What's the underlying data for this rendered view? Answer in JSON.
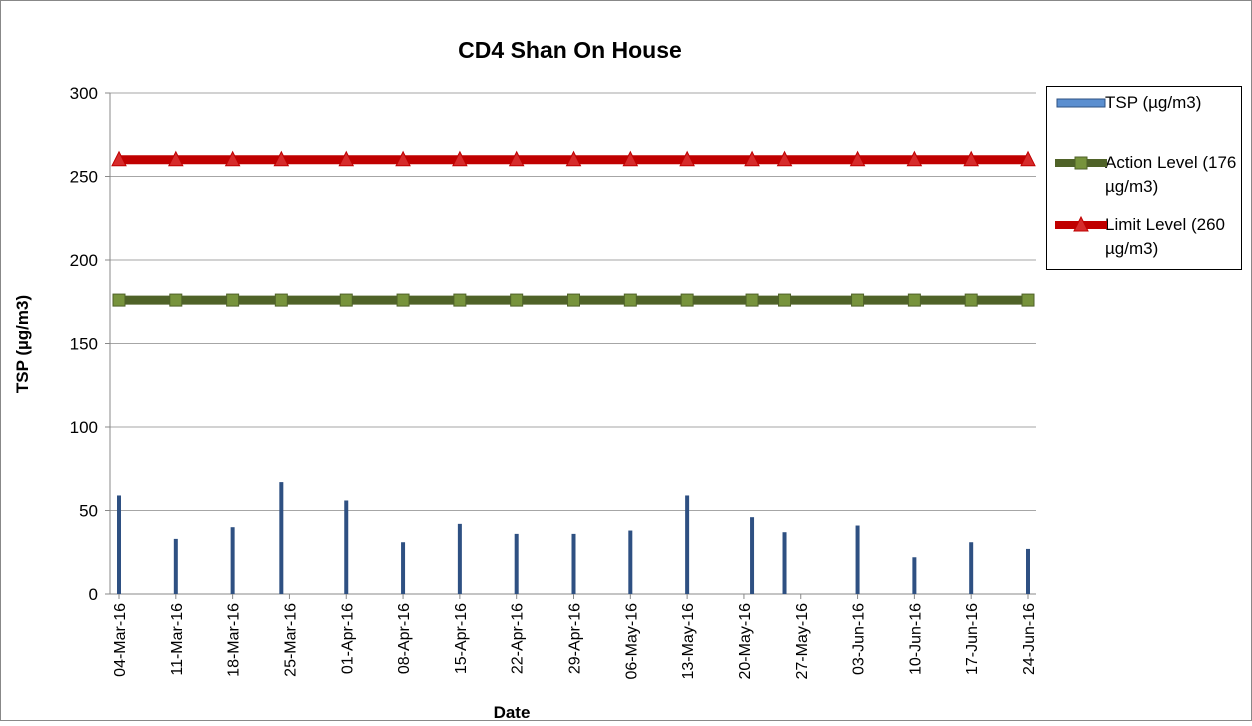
{
  "chart_data": {
    "type": "bar_line",
    "title": "CD4 Shan On House",
    "ylabel": "TSP (µg/m3)",
    "xlabel": "Date",
    "x": [
      "2016-03-04",
      "2016-03-11",
      "2016-03-18",
      "2016-03-24",
      "2016-04-01",
      "2016-04-08",
      "2016-04-15",
      "2016-04-22",
      "2016-04-29",
      "2016-05-06",
      "2016-05-13",
      "2016-05-21",
      "2016-05-25",
      "2016-06-03",
      "2016-06-10",
      "2016-06-17",
      "2016-06-24"
    ],
    "series": [
      {
        "name": "TSP (µg/m3)",
        "type": "bar",
        "color": "#2e5082",
        "values": [
          59,
          33,
          40,
          67,
          56,
          31,
          42,
          36,
          36,
          38,
          59,
          46,
          37,
          41,
          22,
          31,
          27
        ]
      },
      {
        "name": "Action Level (176 µg/m3)",
        "type": "line",
        "color": "#4f6228",
        "marker": "square",
        "marker_color": "#77933c",
        "values": [
          176,
          176,
          176,
          176,
          176,
          176,
          176,
          176,
          176,
          176,
          176,
          176,
          176,
          176,
          176,
          176,
          176
        ]
      },
      {
        "name": "Limit Level (260 µg/m3)",
        "type": "line",
        "color": "#c00000",
        "marker": "triangle",
        "marker_color": "#d62b2b",
        "values": [
          260,
          260,
          260,
          260,
          260,
          260,
          260,
          260,
          260,
          260,
          260,
          260,
          260,
          260,
          260,
          260,
          260
        ]
      }
    ],
    "ylim": [
      0,
      300
    ],
    "yticks": [
      0,
      50,
      100,
      150,
      200,
      250,
      300
    ],
    "xlim": [
      "2016-03-04",
      "2016-06-24"
    ],
    "xticks": [
      {
        "value": "2016-03-04",
        "label": "04-Mar-16"
      },
      {
        "value": "2016-03-11",
        "label": "11-Mar-16"
      },
      {
        "value": "2016-03-18",
        "label": "18-Mar-16"
      },
      {
        "value": "2016-03-25",
        "label": "25-Mar-16"
      },
      {
        "value": "2016-04-01",
        "label": "01-Apr-16"
      },
      {
        "value": "2016-04-08",
        "label": "08-Apr-16"
      },
      {
        "value": "2016-04-15",
        "label": "15-Apr-16"
      },
      {
        "value": "2016-04-22",
        "label": "22-Apr-16"
      },
      {
        "value": "2016-04-29",
        "label": "29-Apr-16"
      },
      {
        "value": "2016-05-06",
        "label": "06-May-16"
      },
      {
        "value": "2016-05-13",
        "label": "13-May-16"
      },
      {
        "value": "2016-05-20",
        "label": "20-May-16"
      },
      {
        "value": "2016-05-27",
        "label": "27-May-16"
      },
      {
        "value": "2016-06-03",
        "label": "03-Jun-16"
      },
      {
        "value": "2016-06-10",
        "label": "10-Jun-16"
      },
      {
        "value": "2016-06-17",
        "label": "17-Jun-16"
      },
      {
        "value": "2016-06-24",
        "label": "24-Jun-16"
      }
    ],
    "grid": true,
    "legend": "right"
  }
}
